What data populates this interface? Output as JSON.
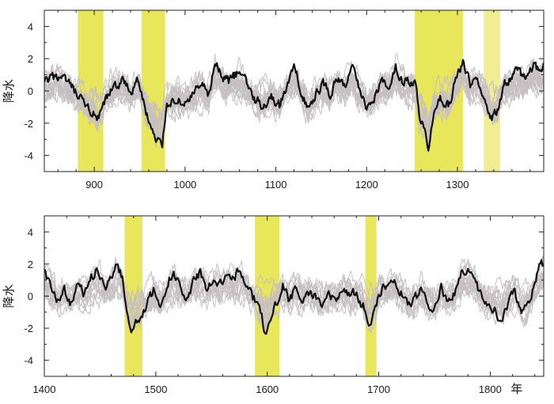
{
  "chart_data": [
    {
      "type": "line",
      "title": "",
      "xlabel": "",
      "ylabel": "降水",
      "xlim": [
        845,
        1395
      ],
      "ylim": [
        -5,
        5
      ],
      "xticks": [
        900,
        1000,
        1100,
        1200,
        1300
      ],
      "yticks": [
        4,
        2,
        0,
        -2,
        -4
      ],
      "grid": false,
      "legend": "none",
      "highlight_spans": [
        {
          "start": 882,
          "end": 910,
          "color": "#e8e65a"
        },
        {
          "start": 952,
          "end": 978,
          "color": "#e8e65a"
        },
        {
          "start": 1253,
          "end": 1306,
          "color": "#e8e65a"
        },
        {
          "start": 1329,
          "end": 1347,
          "color": "#f0ee90"
        }
      ],
      "background_series_count": 14,
      "background_series_color": "#c7c0c2",
      "main_series_color": "#111111",
      "main_series_keypoints": [
        [
          845,
          0.5
        ],
        [
          860,
          0.9
        ],
        [
          872,
          0.4
        ],
        [
          885,
          -0.6
        ],
        [
          897,
          -1.3
        ],
        [
          905,
          -1.8
        ],
        [
          912,
          -0.7
        ],
        [
          922,
          0.3
        ],
        [
          932,
          0.6
        ],
        [
          940,
          -0.1
        ],
        [
          948,
          0.7
        ],
        [
          955,
          -0.9
        ],
        [
          962,
          -2.2
        ],
        [
          968,
          -3.2
        ],
        [
          975,
          -3.2
        ],
        [
          980,
          -0.8
        ],
        [
          988,
          -0.5
        ],
        [
          998,
          -0.8
        ],
        [
          1008,
          -0.3
        ],
        [
          1018,
          0.4
        ],
        [
          1026,
          -0.4
        ],
        [
          1033,
          1.8
        ],
        [
          1040,
          0.9
        ],
        [
          1048,
          0.6
        ],
        [
          1058,
          1.1
        ],
        [
          1066,
          0.8
        ],
        [
          1075,
          -0.4
        ],
        [
          1085,
          -0.9
        ],
        [
          1095,
          -0.4
        ],
        [
          1104,
          -0.9
        ],
        [
          1112,
          0.3
        ],
        [
          1120,
          1.4
        ],
        [
          1128,
          0.1
        ],
        [
          1136,
          -1.2
        ],
        [
          1144,
          -0.3
        ],
        [
          1152,
          0.5
        ],
        [
          1160,
          -0.2
        ],
        [
          1168,
          0.8
        ],
        [
          1176,
          0.3
        ],
        [
          1184,
          1.4
        ],
        [
          1192,
          0.1
        ],
        [
          1200,
          -1.0
        ],
        [
          1208,
          -0.4
        ],
        [
          1216,
          0.6
        ],
        [
          1224,
          0.2
        ],
        [
          1232,
          1.5
        ],
        [
          1240,
          0.6
        ],
        [
          1248,
          0.5
        ],
        [
          1254,
          0.4
        ],
        [
          1258,
          -1.7
        ],
        [
          1263,
          -2.2
        ],
        [
          1268,
          -4.0
        ],
        [
          1274,
          -1.4
        ],
        [
          1282,
          -0.5
        ],
        [
          1290,
          -0.9
        ],
        [
          1298,
          0.6
        ],
        [
          1306,
          1.9
        ],
        [
          1314,
          0.3
        ],
        [
          1322,
          0.8
        ],
        [
          1330,
          -0.3
        ],
        [
          1337,
          -1.7
        ],
        [
          1344,
          -1.3
        ],
        [
          1352,
          0.4
        ],
        [
          1360,
          0.9
        ],
        [
          1368,
          1.2
        ],
        [
          1376,
          0.7
        ],
        [
          1384,
          1.7
        ],
        [
          1391,
          1.1
        ],
        [
          1395,
          1.9
        ]
      ]
    },
    {
      "type": "line",
      "title": "",
      "xlabel": "年",
      "ylabel": "降水",
      "xlim": [
        1400,
        1848
      ],
      "ylim": [
        -5,
        5
      ],
      "xticks": [
        1400,
        1500,
        1600,
        1700,
        1800
      ],
      "yticks": [
        4,
        2,
        0,
        -2,
        -4
      ],
      "grid": false,
      "legend": "none",
      "highlight_spans": [
        {
          "start": 1472,
          "end": 1488,
          "color": "#e8e65a"
        },
        {
          "start": 1589,
          "end": 1611,
          "color": "#e8e65a"
        },
        {
          "start": 1688,
          "end": 1698,
          "color": "#e8e65a"
        }
      ],
      "background_series_count": 14,
      "background_series_color": "#c7c0c2",
      "main_series_color": "#111111",
      "main_series_keypoints": [
        [
          1400,
          1.6
        ],
        [
          1406,
          0.5
        ],
        [
          1412,
          -0.2
        ],
        [
          1418,
          0.3
        ],
        [
          1424,
          -0.5
        ],
        [
          1430,
          0.6
        ],
        [
          1436,
          0.1
        ],
        [
          1442,
          1.1
        ],
        [
          1448,
          1.7
        ],
        [
          1454,
          0.5
        ],
        [
          1460,
          0.9
        ],
        [
          1465,
          2.0
        ],
        [
          1470,
          1.2
        ],
        [
          1475,
          -1.5
        ],
        [
          1480,
          -2.2
        ],
        [
          1485,
          -1.4
        ],
        [
          1492,
          -0.5
        ],
        [
          1498,
          0.3
        ],
        [
          1504,
          -0.7
        ],
        [
          1510,
          0.7
        ],
        [
          1516,
          1.7
        ],
        [
          1522,
          0.5
        ],
        [
          1528,
          -0.2
        ],
        [
          1534,
          0.9
        ],
        [
          1540,
          1.5
        ],
        [
          1546,
          0.4
        ],
        [
          1552,
          1.3
        ],
        [
          1558,
          0.8
        ],
        [
          1564,
          1.4
        ],
        [
          1570,
          1.2
        ],
        [
          1576,
          1.7
        ],
        [
          1582,
          0.4
        ],
        [
          1588,
          -0.2
        ],
        [
          1593,
          -0.7
        ],
        [
          1598,
          -2.3
        ],
        [
          1603,
          -1.3
        ],
        [
          1608,
          -0.4
        ],
        [
          1614,
          0.7
        ],
        [
          1620,
          -0.3
        ],
        [
          1626,
          0.6
        ],
        [
          1632,
          -0.4
        ],
        [
          1638,
          0.3
        ],
        [
          1644,
          -0.2
        ],
        [
          1650,
          -0.7
        ],
        [
          1656,
          0.1
        ],
        [
          1662,
          -0.5
        ],
        [
          1668,
          0.5
        ],
        [
          1674,
          0.2
        ],
        [
          1680,
          0.1
        ],
        [
          1686,
          -0.6
        ],
        [
          1691,
          -2.1
        ],
        [
          1696,
          -1.0
        ],
        [
          1702,
          0.4
        ],
        [
          1708,
          0.7
        ],
        [
          1714,
          1.0
        ],
        [
          1720,
          0.2
        ],
        [
          1726,
          -0.6
        ],
        [
          1732,
          -0.3
        ],
        [
          1738,
          0.4
        ],
        [
          1744,
          -0.4
        ],
        [
          1750,
          -0.9
        ],
        [
          1756,
          0.5
        ],
        [
          1762,
          -0.3
        ],
        [
          1768,
          0.1
        ],
        [
          1774,
          1.4
        ],
        [
          1780,
          1.9
        ],
        [
          1786,
          1.0
        ],
        [
          1792,
          0.0
        ],
        [
          1798,
          -0.6
        ],
        [
          1804,
          -0.9
        ],
        [
          1810,
          -1.4
        ],
        [
          1816,
          -0.5
        ],
        [
          1822,
          0.4
        ],
        [
          1828,
          -1.1
        ],
        [
          1834,
          -0.7
        ],
        [
          1840,
          0.8
        ],
        [
          1846,
          2.1
        ],
        [
          1848,
          1.8
        ]
      ]
    }
  ]
}
